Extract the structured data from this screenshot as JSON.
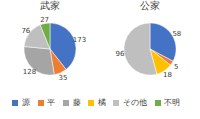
{
  "chart_data": [
    {
      "type": "pie",
      "title": "武家",
      "categories": [
        "源",
        "平",
        "藤",
        "橘",
        "その他",
        "不明"
      ],
      "values": [
        173,
        35,
        128,
        0,
        76,
        27
      ],
      "colors": [
        "#4472c4",
        "#ed7d31",
        "#a5a5a5",
        "#ffc000",
        "#bfbfbf",
        "#70ad47"
      ],
      "data_labels": true,
      "legend": "bottom"
    },
    {
      "type": "pie",
      "title": "公家",
      "categories": [
        "源",
        "平",
        "藤",
        "橘",
        "その他",
        "不明"
      ],
      "values": [
        58,
        5,
        0,
        18,
        96,
        0
      ],
      "colors": [
        "#4472c4",
        "#ed7d31",
        "#a5a5a5",
        "#ffc000",
        "#bfbfbf",
        "#70ad47"
      ],
      "data_labels": true,
      "legend": "bottom"
    }
  ]
}
